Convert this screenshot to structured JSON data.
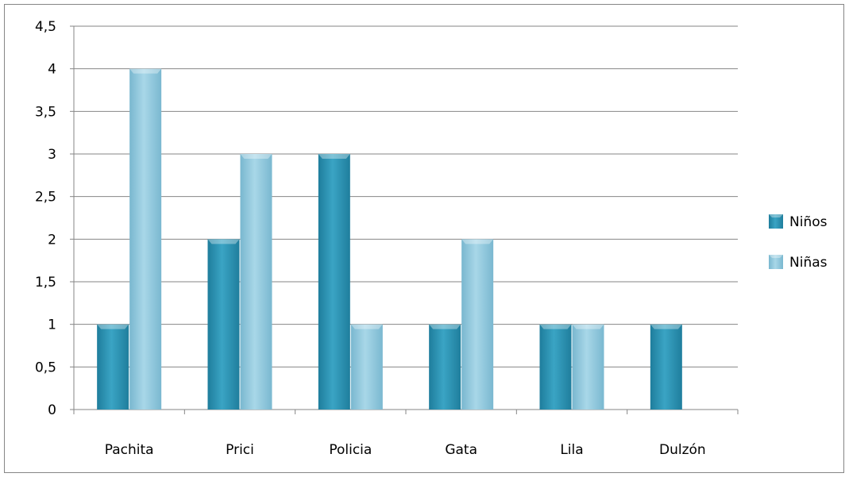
{
  "chart_data": {
    "type": "bar",
    "title": "",
    "xlabel": "",
    "ylabel": "",
    "categories": [
      "Pachita",
      "Prici",
      "Policia",
      "Gata",
      "Lila",
      "Dulzón"
    ],
    "series": [
      {
        "name": "Niños",
        "values": [
          1,
          2,
          3,
          1,
          1,
          1
        ],
        "color": "#2b8fb0"
      },
      {
        "name": "Niñas",
        "values": [
          4,
          3,
          1,
          2,
          1,
          0
        ],
        "color": "#8ec7dc"
      }
    ],
    "ylim": [
      0,
      4.5
    ],
    "yticks": [
      "0",
      "0,5",
      "1",
      "1,5",
      "2",
      "2,5",
      "3",
      "3,5",
      "4",
      "4,5"
    ],
    "grid": true,
    "legend_position": "right"
  },
  "colors": {
    "gridline": "#868686",
    "axis": "#868686"
  }
}
